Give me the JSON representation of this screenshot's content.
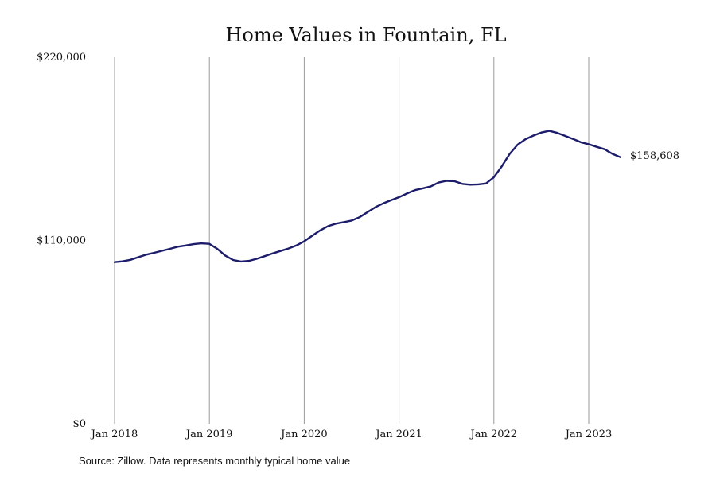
{
  "chart_data": {
    "type": "line",
    "title": "Home Values in Fountain, FL",
    "xlabel": "",
    "ylabel": "",
    "x_ticks": [
      "Jan 2018",
      "Jan 2019",
      "Jan 2020",
      "Jan 2021",
      "Jan 2022",
      "Jan 2023"
    ],
    "y_ticks": [
      "$0",
      "$110,000",
      "$220,000"
    ],
    "y_tick_values": [
      0,
      110000,
      220000
    ],
    "ylim": [
      0,
      220000
    ],
    "grid": "vertical lines at each January",
    "line_color": "#1c1c6b",
    "end_label": "$158,608",
    "series": [
      {
        "x": [
          "2018-01",
          "2018-02",
          "2018-03",
          "2018-04",
          "2018-05",
          "2018-06",
          "2018-07",
          "2018-08",
          "2018-09",
          "2018-10",
          "2018-11",
          "2018-12",
          "2019-01",
          "2019-02",
          "2019-03",
          "2019-04",
          "2019-05",
          "2019-06",
          "2019-07",
          "2019-08",
          "2019-09",
          "2019-10",
          "2019-11",
          "2019-12",
          "2020-01",
          "2020-02",
          "2020-03",
          "2020-04",
          "2020-05",
          "2020-06",
          "2020-07",
          "2020-08",
          "2020-09",
          "2020-10",
          "2020-11",
          "2020-12",
          "2021-01",
          "2021-02",
          "2021-03",
          "2021-04",
          "2021-05",
          "2021-06",
          "2021-07",
          "2021-08",
          "2021-09",
          "2021-10",
          "2021-11",
          "2021-12",
          "2022-01",
          "2022-02",
          "2022-03",
          "2022-04",
          "2022-05",
          "2022-06",
          "2022-07",
          "2022-08",
          "2022-09",
          "2022-10",
          "2022-11",
          "2022-12",
          "2023-01",
          "2023-02",
          "2023-03",
          "2023-04",
          "2023-05"
        ],
        "values": [
          97000,
          97500,
          98400,
          100000,
          101500,
          102600,
          103800,
          105000,
          106300,
          107000,
          107800,
          108300,
          108000,
          105000,
          101000,
          98300,
          97400,
          97800,
          99000,
          100600,
          102200,
          103700,
          105200,
          107000,
          109500,
          112800,
          116000,
          118600,
          120100,
          121000,
          122000,
          124000,
          127000,
          130000,
          132300,
          134200,
          136000,
          138200,
          140200,
          141300,
          142400,
          144800,
          145800,
          145600,
          144000,
          143500,
          143700,
          144200,
          148000,
          154500,
          162000,
          167500,
          170800,
          173000,
          174800,
          175800,
          174600,
          172800,
          171000,
          169000,
          167800,
          166200,
          164800,
          162000,
          160000
        ]
      }
    ]
  },
  "source_text": "Source: Zillow. Data represents monthly typical home value"
}
